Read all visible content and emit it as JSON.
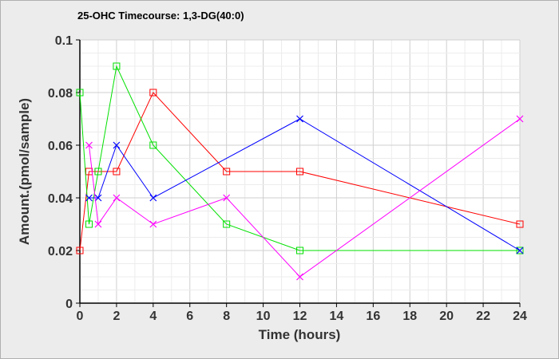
{
  "chart_data": {
    "type": "line",
    "title": "25-OHC Timecourse: 1,3-DG(40:0)",
    "xlabel": "Time (hours)",
    "ylabel": "Amount.(pmol/sample)",
    "xlim": [
      0,
      24
    ],
    "ylim": [
      0,
      0.1
    ],
    "xticks": [
      "0",
      "2",
      "4",
      "6",
      "8",
      "10",
      "12",
      "14",
      "16",
      "18",
      "20",
      "22",
      "24"
    ],
    "yticks": [
      "0",
      "0.02",
      "0.04",
      "0.06",
      "0.08",
      "0.1"
    ],
    "grid": true,
    "series": [
      {
        "name": "red",
        "color": "#ff0000",
        "marker": "square",
        "x": [
          0,
          0.5,
          1,
          2,
          4,
          8,
          12,
          24
        ],
        "y": [
          0.02,
          0.05,
          0.05,
          0.05,
          0.08,
          0.05,
          0.05,
          0.03
        ]
      },
      {
        "name": "green",
        "color": "#00e000",
        "marker": "square",
        "x": [
          0,
          0.5,
          1,
          2,
          4,
          8,
          12,
          24
        ],
        "y": [
          0.08,
          0.03,
          0.05,
          0.09,
          0.06,
          0.03,
          0.02,
          0.02
        ]
      },
      {
        "name": "blue",
        "color": "#0000ff",
        "marker": "x",
        "x": [
          0.5,
          1,
          2,
          4,
          12,
          24
        ],
        "y": [
          0.04,
          0.04,
          0.06,
          0.04,
          0.07,
          0.02
        ]
      },
      {
        "name": "magenta",
        "color": "#ff00ff",
        "marker": "x",
        "x": [
          0.5,
          1,
          2,
          4,
          8,
          12,
          24
        ],
        "y": [
          0.06,
          0.03,
          0.04,
          0.03,
          0.04,
          0.01,
          0.07
        ]
      }
    ]
  }
}
